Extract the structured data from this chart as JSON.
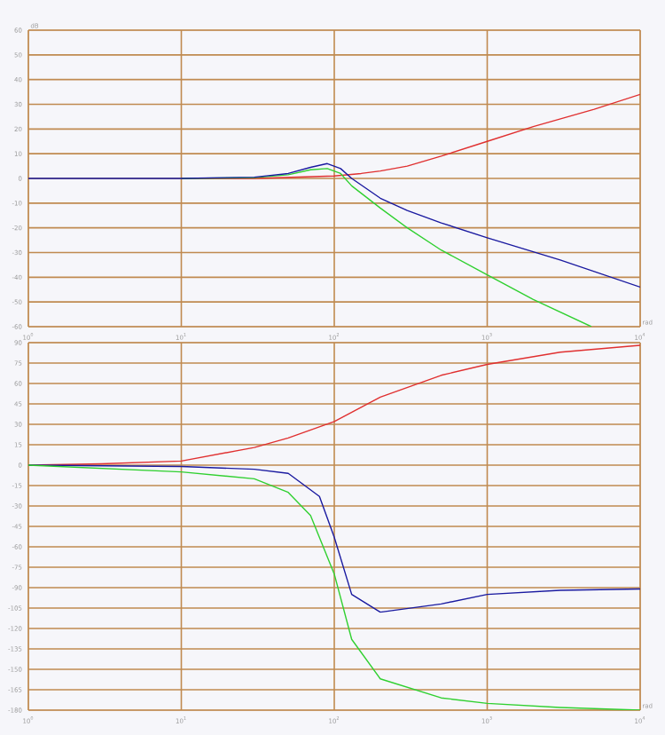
{
  "chart_data": [
    {
      "type": "line",
      "ylabel": "dB",
      "xlabel": "rad",
      "log": "x",
      "grid": true,
      "xlim": [
        1,
        10000
      ],
      "ylim": [
        -60,
        60
      ],
      "xticks": [
        {
          "value": 1,
          "label": "10$^{0}$"
        },
        {
          "value": 10,
          "label": "10$^{1}$"
        },
        {
          "value": 100,
          "label": "10$^{2}$"
        },
        {
          "value": 1000,
          "label": "10$^{3}$"
        },
        {
          "value": 10000,
          "label": "10$^{4}$"
        }
      ],
      "yticks": [
        -60,
        -50,
        -40,
        -30,
        -20,
        -10,
        0,
        10,
        20,
        30,
        40,
        50,
        60
      ],
      "series": [
        {
          "color": "#e03030",
          "x": [
            10,
            30,
            100,
            150,
            200,
            300,
            500,
            1000,
            2000,
            5000,
            10000
          ],
          "values": [
            0,
            0,
            1,
            2,
            3,
            5,
            9,
            15,
            21,
            28,
            34
          ]
        },
        {
          "color": "#30d030",
          "x": [
            10,
            30,
            50,
            70,
            90,
            110,
            130,
            200,
            300,
            500,
            1000,
            2000,
            4800
          ],
          "values": [
            0,
            0.3,
            1.5,
            3.5,
            4,
            2,
            -3,
            -12,
            -20,
            -29,
            -39,
            -49,
            -60
          ]
        },
        {
          "color": "#1a1aa0",
          "x": [
            1,
            10,
            30,
            50,
            70,
            90,
            110,
            130,
            200,
            300,
            500,
            1000,
            3000,
            10000
          ],
          "values": [
            0,
            0,
            0.5,
            2,
            4.5,
            6,
            4,
            0,
            -8,
            -13,
            -18,
            -24,
            -33,
            -44
          ]
        }
      ]
    },
    {
      "type": "line",
      "xlabel": "rad",
      "log": "x",
      "grid": true,
      "xlim": [
        1,
        10000
      ],
      "ylim": [
        -180,
        90
      ],
      "xticks": [
        {
          "value": 1,
          "label": "10$^{0}$"
        },
        {
          "value": 10,
          "label": "10$^{1}$"
        },
        {
          "value": 100,
          "label": "10$^{2}$"
        },
        {
          "value": 1000,
          "label": "10$^{3}$"
        },
        {
          "value": 10000,
          "label": "10$^{4}$"
        }
      ],
      "yticks": [
        -180,
        -165,
        -150,
        -135,
        -120,
        -105,
        -90,
        -75,
        -60,
        -45,
        -30,
        -15,
        0,
        15,
        30,
        45,
        60,
        75,
        90
      ],
      "series": [
        {
          "color": "#e03030",
          "x": [
            1,
            3,
            10,
            30,
            50,
            100,
            200,
            500,
            1000,
            3000,
            10000
          ],
          "values": [
            0,
            1,
            3,
            13,
            20,
            32,
            50,
            66,
            74,
            83,
            88
          ]
        },
        {
          "color": "#1a1aa0",
          "x": [
            1,
            10,
            30,
            50,
            80,
            100,
            130,
            200,
            500,
            1000,
            3000,
            10000
          ],
          "values": [
            0,
            -1,
            -3,
            -6,
            -23,
            -53,
            -95,
            -108,
            -102,
            -95,
            -92,
            -91
          ]
        },
        {
          "color": "#30d030",
          "x": [
            1,
            10,
            30,
            50,
            70,
            100,
            130,
            200,
            500,
            1000,
            3000,
            10000
          ],
          "values": [
            0,
            -5,
            -10,
            -20,
            -37,
            -80,
            -128,
            -157,
            -171,
            -175,
            -178,
            -180
          ]
        }
      ]
    }
  ]
}
